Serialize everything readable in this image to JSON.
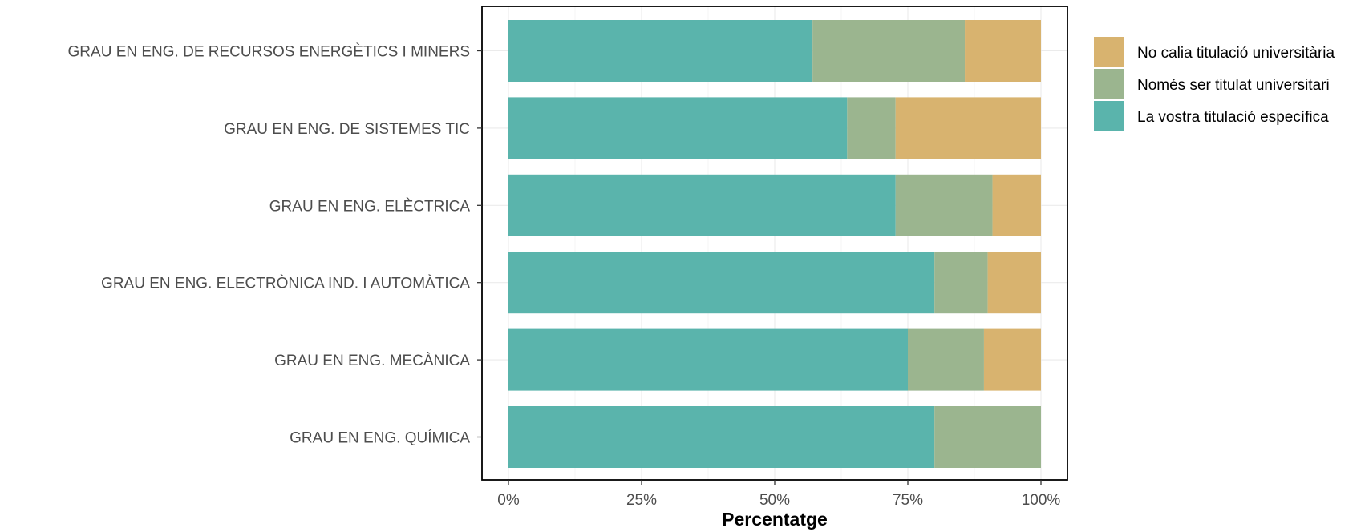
{
  "chart_data": {
    "type": "bar",
    "orientation": "horizontal",
    "stacked": true,
    "xlabel": "Percentatge",
    "ylabel": "",
    "xlim": [
      0,
      100
    ],
    "xticks": [
      "0%",
      "25%",
      "50%",
      "75%",
      "100%"
    ],
    "xtick_values": [
      0,
      25,
      50,
      75,
      100
    ],
    "grid": true,
    "legend_position": "right-top",
    "categories": [
      "GRAU EN ENG. DE RECURSOS ENERGÈTICS I MINERS",
      "GRAU EN ENG. DE SISTEMES TIC",
      "GRAU EN ENG. ELÈCTRICA",
      "GRAU EN ENG. ELECTRÒNICA IND. I AUTOMÀTICA",
      "GRAU EN ENG. MECÀNICA",
      "GRAU EN ENG. QUÍMICA"
    ],
    "series": [
      {
        "name": "La vostra titulació específica",
        "color": "#5ab4ac",
        "values": [
          57.1,
          63.6,
          72.7,
          80.0,
          75.0,
          80.0
        ]
      },
      {
        "name": "Només ser titulat universitari",
        "color": "#9bb58f",
        "values": [
          28.6,
          9.1,
          18.2,
          10.0,
          14.3,
          20.0
        ]
      },
      {
        "name": "No calia titulació universitària",
        "color": "#d8b36f",
        "values": [
          14.3,
          27.3,
          9.1,
          10.0,
          10.7,
          0.0
        ]
      }
    ],
    "legend_order": [
      2,
      1,
      0
    ]
  }
}
